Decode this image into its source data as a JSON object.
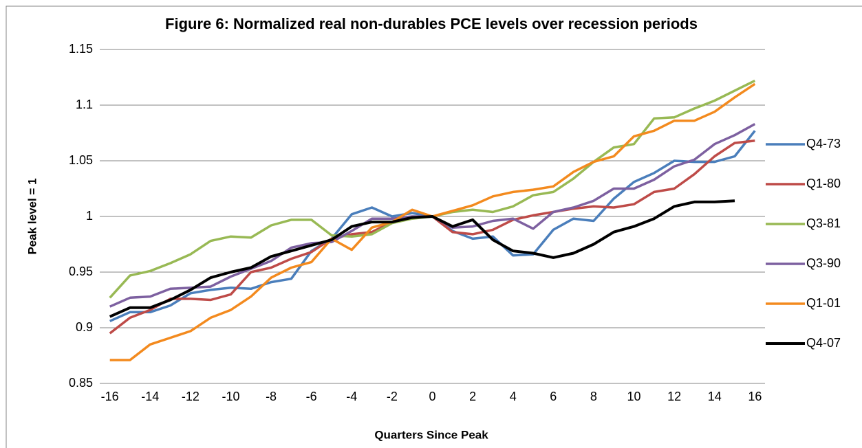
{
  "chart_data": {
    "type": "line",
    "title": "Figure 6: Normalized real non-durables PCE levels over recession periods",
    "x_label": "Quarters Since Peak",
    "y_label": "Peak level = 1",
    "x": [
      -16,
      -15,
      -14,
      -13,
      -12,
      -11,
      -10,
      -9,
      -8,
      -7,
      -6,
      -5,
      -4,
      -3,
      -2,
      -1,
      0,
      1,
      2,
      3,
      4,
      5,
      6,
      7,
      8,
      9,
      10,
      11,
      12,
      13,
      14,
      15,
      16
    ],
    "xlim": [
      -16.5,
      16.5
    ],
    "xticks": [
      -16,
      -14,
      -12,
      -10,
      -8,
      -6,
      -4,
      -2,
      0,
      2,
      4,
      6,
      8,
      10,
      12,
      14,
      16
    ],
    "ylim": [
      0.85,
      1.15
    ],
    "yticks": [
      0.85,
      0.9,
      0.95,
      1,
      1.05,
      1.1,
      1.15
    ],
    "grid": true,
    "legend": "right",
    "series": [
      {
        "name": "Q4-73",
        "color": "#4a7ebb",
        "values": [
          0.906,
          0.914,
          0.914,
          0.92,
          0.931,
          0.934,
          0.936,
          0.935,
          0.941,
          0.944,
          0.969,
          0.98,
          1.002,
          1.008,
          1.0,
          1.003,
          1.0,
          0.987,
          0.98,
          0.982,
          0.965,
          0.966,
          0.988,
          0.998,
          0.996,
          1.016,
          1.031,
          1.039,
          1.05,
          1.049,
          1.049,
          1.054,
          1.077
        ]
      },
      {
        "name": "Q1-80",
        "color": "#be4b48",
        "values": [
          0.895,
          0.909,
          0.916,
          0.926,
          0.926,
          0.925,
          0.93,
          0.95,
          0.954,
          0.962,
          0.968,
          0.98,
          0.984,
          0.986,
          0.995,
          0.999,
          1.0,
          0.986,
          0.984,
          0.988,
          0.997,
          1.001,
          1.004,
          1.007,
          1.009,
          1.008,
          1.011,
          1.022,
          1.025,
          1.038,
          1.054,
          1.066,
          1.068
        ]
      },
      {
        "name": "Q3-81",
        "color": "#98b954",
        "values": [
          0.927,
          0.947,
          0.951,
          0.958,
          0.966,
          0.978,
          0.982,
          0.981,
          0.992,
          0.997,
          0.997,
          0.983,
          0.982,
          0.984,
          0.994,
          0.998,
          1.0,
          1.004,
          1.006,
          1.004,
          1.009,
          1.019,
          1.022,
          1.034,
          1.049,
          1.062,
          1.065,
          1.088,
          1.089,
          1.097,
          1.104,
          1.113,
          1.122
        ]
      },
      {
        "name": "Q3-90",
        "color": "#7d60a0",
        "values": [
          0.919,
          0.927,
          0.928,
          0.935,
          0.936,
          0.937,
          0.946,
          0.953,
          0.96,
          0.972,
          0.976,
          0.977,
          0.987,
          0.998,
          0.998,
          1.0,
          1.0,
          0.99,
          0.991,
          0.996,
          0.998,
          0.989,
          1.004,
          1.008,
          1.014,
          1.025,
          1.025,
          1.033,
          1.045,
          1.051,
          1.065,
          1.073,
          1.083
        ]
      },
      {
        "name": "Q1-01",
        "color": "#f38a1e",
        "values": [
          0.871,
          0.871,
          0.885,
          0.891,
          0.897,
          0.909,
          0.916,
          0.928,
          0.945,
          0.954,
          0.959,
          0.98,
          0.97,
          0.99,
          0.995,
          1.006,
          1.0,
          1.005,
          1.01,
          1.018,
          1.022,
          1.024,
          1.027,
          1.04,
          1.049,
          1.054,
          1.072,
          1.077,
          1.086,
          1.086,
          1.094,
          1.107,
          1.119
        ]
      },
      {
        "name": "Q4-07",
        "color": "#000000",
        "values": [
          0.91,
          0.918,
          0.918,
          0.925,
          0.934,
          0.945,
          0.95,
          0.954,
          0.964,
          0.969,
          0.974,
          0.979,
          0.991,
          0.995,
          0.995,
          0.999,
          1.0,
          0.991,
          0.997,
          0.979,
          0.969,
          0.967,
          0.963,
          0.967,
          0.975,
          0.986,
          0.991,
          0.998,
          1.009,
          1.013,
          1.013,
          1.014,
          null
        ]
      }
    ]
  }
}
